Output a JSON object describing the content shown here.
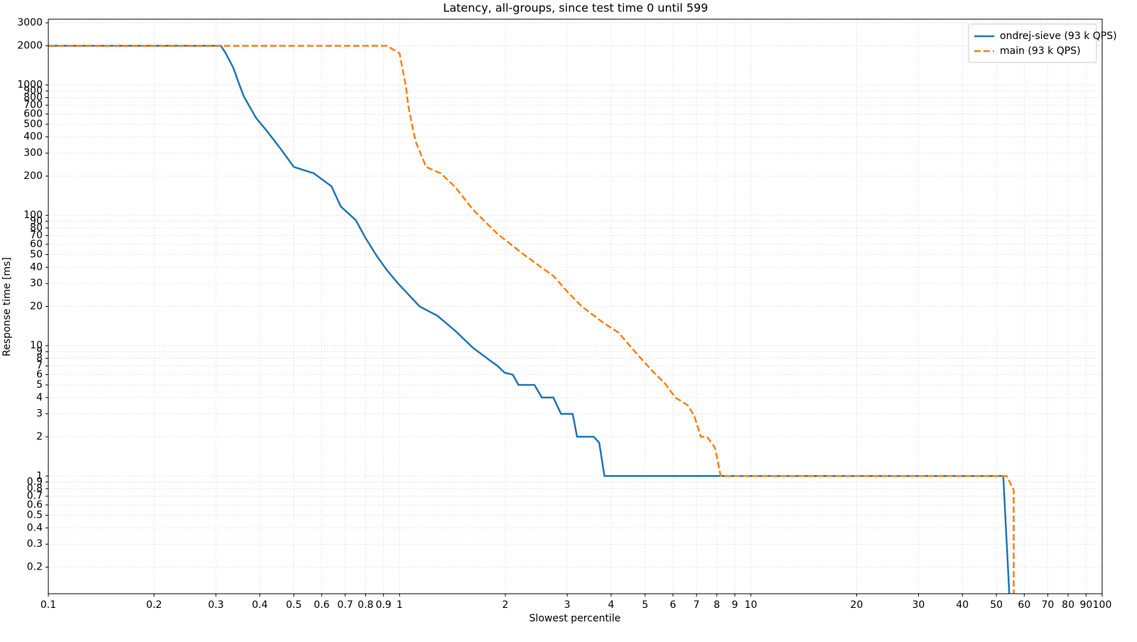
{
  "chart_data": {
    "type": "line",
    "title": "Latency, all-groups, since test time 0 until 599",
    "xlabel": "Slowest percentile",
    "ylabel": "Response time [ms]",
    "xscale": "log",
    "yscale": "log",
    "grid": true,
    "legend": "upper right",
    "xlim": [
      0.1,
      100
    ],
    "ylim": [
      0.125,
      3200
    ],
    "xticks": [
      0.1,
      0.2,
      0.3,
      0.4,
      0.5,
      0.6,
      0.7,
      0.8,
      0.9,
      1,
      2,
      3,
      4,
      5,
      6,
      7,
      8,
      9,
      10,
      20,
      30,
      40,
      50,
      60,
      70,
      80,
      90,
      100
    ],
    "yticks": [
      0.2,
      0.3,
      0.4,
      0.5,
      0.6,
      0.7,
      0.8,
      0.9,
      1,
      2,
      3,
      4,
      5,
      6,
      7,
      8,
      9,
      10,
      20,
      30,
      40,
      50,
      60,
      70,
      80,
      90,
      100,
      200,
      300,
      400,
      500,
      600,
      700,
      800,
      900,
      1000,
      2000,
      3000
    ],
    "series": [
      {
        "name": "ondrej-sieve (93 k QPS)",
        "color": "#1f77b4",
        "linestyle": "solid",
        "x": [
          0.1,
          0.31,
          0.32,
          0.336,
          0.35,
          0.36,
          0.39,
          0.42,
          0.46,
          0.5,
          0.57,
          0.64,
          0.68,
          0.75,
          0.8,
          0.86,
          0.92,
          0.99,
          1.14,
          1.28,
          1.44,
          1.62,
          1.82,
          1.9,
          1.99,
          2.1,
          2.18,
          2.42,
          2.54,
          2.74,
          2.88,
          3.11,
          3.2,
          3.57,
          3.7,
          3.83,
          52.3,
          54.4
        ],
        "values": [
          2000,
          2000,
          1750,
          1360,
          1000,
          820,
          560,
          440,
          320,
          235,
          210,
          167,
          117,
          92,
          67,
          49,
          38,
          30,
          20,
          17,
          13,
          9.6,
          7.6,
          7,
          6.2,
          6,
          5,
          5,
          4,
          4,
          3,
          3,
          2,
          2,
          1.8,
          1,
          1,
          0.125
        ]
      },
      {
        "name": "main (93 k QPS)",
        "color": "#ff7f0e",
        "linestyle": "dashed",
        "x": [
          0.1,
          0.92,
          1.0,
          1.04,
          1.06,
          1.11,
          1.19,
          1.31,
          1.44,
          1.62,
          1.9,
          2.28,
          2.75,
          3.0,
          3.3,
          3.8,
          4.2,
          4.8,
          5.3,
          5.7,
          6.1,
          6.6,
          6.9,
          7.2,
          7.5,
          7.9,
          8.2,
          53.5,
          56,
          56
        ],
        "values": [
          2000,
          2000,
          1750,
          1000,
          680,
          370,
          235,
          210,
          165,
          110,
          72,
          49,
          34,
          26,
          20,
          15,
          12.6,
          8.3,
          6.2,
          5.1,
          4,
          3.5,
          2.9,
          2,
          2,
          1.65,
          1,
          1,
          0.78,
          0.125
        ]
      }
    ]
  }
}
